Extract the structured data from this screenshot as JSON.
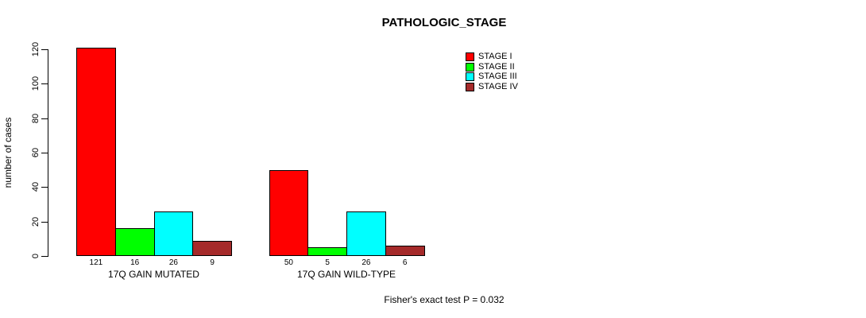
{
  "page": {
    "background": "#FFFFFF"
  },
  "chart_data": {
    "type": "bar",
    "title": "PATHOLOGIC_STAGE",
    "ylabel": "number of cases",
    "ylim": [
      0,
      120
    ],
    "yticks": [
      0,
      20,
      40,
      60,
      80,
      100,
      120
    ],
    "categories": [
      "17Q GAIN MUTATED",
      "17Q GAIN WILD-TYPE"
    ],
    "series": [
      {
        "name": "STAGE I",
        "color": "#FF0000",
        "values": [
          121,
          50
        ]
      },
      {
        "name": "STAGE II",
        "color": "#00FF00",
        "values": [
          16,
          5
        ]
      },
      {
        "name": "STAGE III",
        "color": "#00FFFF",
        "values": [
          26,
          26
        ]
      },
      {
        "name": "STAGE IV",
        "color": "#A52A2A",
        "values": [
          9,
          6
        ]
      }
    ],
    "bar_values_shown": true,
    "legend_position": "top-right",
    "grid": false,
    "annotation": "Fisher's exact test P = 0.032"
  }
}
